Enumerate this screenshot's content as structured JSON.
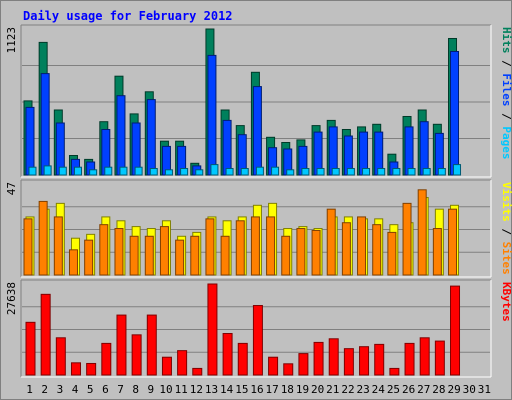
{
  "title": "Daily usage for February 2012",
  "colors": {
    "hits": "#00805c",
    "files": "#0040ff",
    "pages": "#00c8ff",
    "visits": "#ffff00",
    "sites": "#ff8000",
    "kbytes": "#ff0000",
    "weekend_day": "#00805c",
    "weekday": "#000000"
  },
  "chart_data": [
    {
      "type": "bar",
      "title": "Hits / Files / Pages",
      "ymax_label": "1123",
      "ylim": [
        0,
        1123
      ],
      "legend": [
        "Pages",
        "/",
        "Files",
        "/",
        "Hits"
      ],
      "categories": [
        "1",
        "2",
        "3",
        "4",
        "5",
        "6",
        "7",
        "8",
        "9",
        "10",
        "11",
        "12",
        "13",
        "14",
        "15",
        "16",
        "17",
        "18",
        "19",
        "20",
        "21",
        "22",
        "23",
        "24",
        "25",
        "26",
        "27",
        "28",
        "29",
        "30",
        "31"
      ],
      "series": [
        {
          "name": "Hits",
          "values": [
            570,
            1020,
            500,
            150,
            120,
            410,
            760,
            470,
            640,
            260,
            260,
            90,
            1123,
            500,
            380,
            790,
            290,
            250,
            270,
            380,
            420,
            350,
            370,
            390,
            160,
            450,
            500,
            390,
            1050,
            0,
            0
          ]
        },
        {
          "name": "Files",
          "values": [
            520,
            780,
            400,
            120,
            100,
            350,
            610,
            400,
            580,
            220,
            220,
            70,
            920,
            420,
            310,
            680,
            210,
            200,
            220,
            330,
            370,
            300,
            330,
            330,
            100,
            370,
            410,
            320,
            950,
            0,
            0
          ]
        },
        {
          "name": "Pages",
          "values": [
            60,
            70,
            60,
            60,
            40,
            60,
            60,
            60,
            50,
            40,
            50,
            40,
            80,
            50,
            50,
            60,
            60,
            40,
            50,
            50,
            50,
            50,
            50,
            50,
            50,
            50,
            50,
            50,
            80,
            0,
            0
          ]
        }
      ]
    },
    {
      "type": "bar",
      "title": "Visits / Sites",
      "ymax_label": "47",
      "ylim": [
        0,
        47
      ],
      "legend": [
        "Sites",
        "/",
        "Visits"
      ],
      "categories": [
        "1",
        "2",
        "3",
        "4",
        "5",
        "6",
        "7",
        "8",
        "9",
        "10",
        "11",
        "12",
        "13",
        "14",
        "15",
        "16",
        "17",
        "18",
        "19",
        "20",
        "21",
        "22",
        "23",
        "24",
        "25",
        "26",
        "27",
        "28",
        "29",
        "30",
        "31"
      ],
      "series": [
        {
          "name": "Visits",
          "values": [
            30,
            34,
            37,
            19,
            21,
            30,
            28,
            25,
            24,
            28,
            20,
            22,
            30,
            28,
            30,
            36,
            37,
            24,
            25,
            24,
            30,
            30,
            29,
            29,
            26,
            27,
            40,
            34,
            36,
            0,
            0
          ]
        },
        {
          "name": "Sites",
          "values": [
            29,
            38,
            30,
            13,
            18,
            26,
            24,
            20,
            20,
            25,
            18,
            20,
            29,
            20,
            28,
            30,
            30,
            20,
            24,
            23,
            34,
            27,
            30,
            26,
            22,
            37,
            44,
            24,
            34,
            0,
            0
          ]
        }
      ]
    },
    {
      "type": "bar",
      "title": "KBytes",
      "ymax_label": "27638",
      "ylim": [
        0,
        27638
      ],
      "legend": [
        "KBytes"
      ],
      "categories": [
        "1",
        "2",
        "3",
        "4",
        "5",
        "6",
        "7",
        "8",
        "9",
        "10",
        "11",
        "12",
        "13",
        "14",
        "15",
        "16",
        "17",
        "18",
        "19",
        "20",
        "21",
        "22",
        "23",
        "24",
        "25",
        "26",
        "27",
        "28",
        "29",
        "30",
        "31"
      ],
      "series": [
        {
          "name": "KBytes",
          "values": [
            16000,
            24500,
            11300,
            3700,
            3500,
            9600,
            18200,
            12200,
            18200,
            5400,
            7400,
            2000,
            27638,
            12600,
            9600,
            21100,
            5400,
            3400,
            6500,
            9900,
            11000,
            8000,
            8600,
            9300,
            2000,
            9600,
            11300,
            10300,
            27000,
            0,
            0
          ]
        }
      ]
    }
  ]
}
